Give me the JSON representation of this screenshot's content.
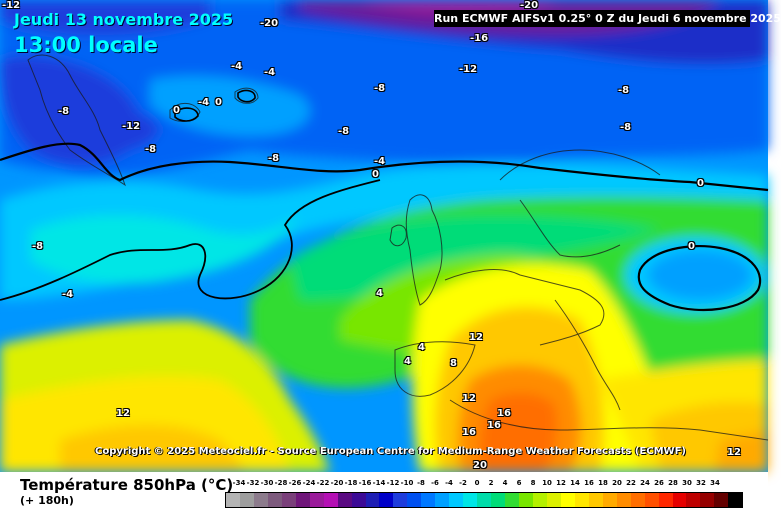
{
  "header": {
    "date": "Jeudi 13 novembre 2025",
    "local_time": "13:00 locale",
    "run_info": "Run ECMWF AIFSv1 0.25° 0 Z du Jeudi 6 novembre 2025"
  },
  "copyright": "Copyright © 2025 Meteociel.fr - Source European Centre for Medium-Range Weather Forecasts (ECMWF)",
  "legend": {
    "title": "Température 850hPa (°C)",
    "subtitle": "(+ 180h)",
    "ticks": [
      "-34",
      "-32",
      "-30",
      "-28",
      "-26",
      "-24",
      "-22",
      "-20",
      "-18",
      "-16",
      "-14",
      "-12",
      "-10",
      "-8",
      "-6",
      "-4",
      "-2",
      "0",
      "2",
      "4",
      "6",
      "8",
      "10",
      "12",
      "14",
      "16",
      "18",
      "20",
      "22",
      "24",
      "26",
      "28",
      "30",
      "32",
      "34"
    ],
    "colors": [
      "#b4b4b4",
      "#9e9e9e",
      "#8c7b8c",
      "#7d5a7d",
      "#7a3f7a",
      "#70167a",
      "#9a1a9a",
      "#b40fb4",
      "#5a0a82",
      "#3c0a96",
      "#1e1eb4",
      "#0000c8",
      "#1e3cdc",
      "#0050f0",
      "#0078ff",
      "#00a0ff",
      "#00c8ff",
      "#00e6e6",
      "#00dcaa",
      "#00dc78",
      "#32dc32",
      "#78e600",
      "#b4f000",
      "#dcf000",
      "#ffff00",
      "#ffe600",
      "#ffc800",
      "#ffaa00",
      "#ff8c00",
      "#ff6e00",
      "#ff5000",
      "#ff2800",
      "#e60000",
      "#be0000",
      "#960000",
      "#640000",
      "#000000"
    ]
  },
  "map_labels": [
    "-12",
    "-20",
    "-20",
    "-16",
    "-12",
    "-4",
    "-4",
    "-4",
    "0",
    "0",
    "-8",
    "-8",
    "-12",
    "-8",
    "-8",
    "-8",
    "-8",
    "-8",
    "-4",
    "0",
    "0",
    "0",
    "-8",
    "-4",
    "4",
    "4",
    "4",
    "8",
    "12",
    "12",
    "12",
    "16",
    "16",
    "16",
    "20",
    "12"
  ]
}
